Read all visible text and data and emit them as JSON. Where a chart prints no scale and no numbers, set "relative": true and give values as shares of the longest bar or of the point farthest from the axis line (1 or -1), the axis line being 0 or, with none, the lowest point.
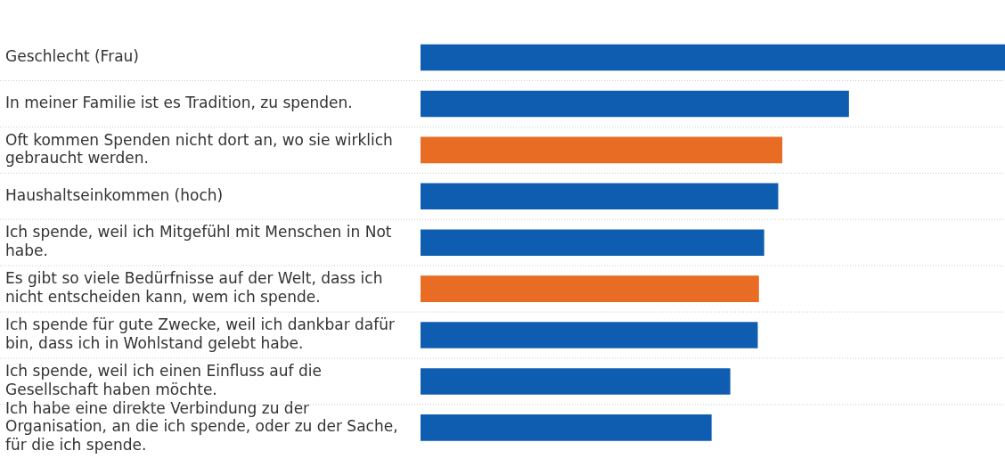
{
  "chart_data": {
    "type": "bar",
    "orientation": "horizontal",
    "relative": true,
    "categories": [
      "Geschlecht (Frau)",
      "In meiner Familie ist es Tradition, zu spenden.",
      "Oft kommen Spenden nicht dort an, wo sie wirklich gebraucht werden.",
      "Haushaltseinkommen (hoch)",
      "Ich spende, weil ich Mitgefühl mit Menschen in Not habe.",
      "Es gibt so viele Bedürfnisse auf der Welt, dass ich nicht entscheiden kann, wem ich spende.",
      "Ich spende für gute Zwecke, weil ich dankbar dafür bin, dass ich in Wohlstand gelebt habe.",
      "Ich spende, weil ich einen Einfluss auf die Gesellschaft haben möchte.",
      "Ich habe eine direkte Verbindung zu der Organisation, an die ich spende, oder zu der Sache, für die ich spende."
    ],
    "values": [
      1,
      0.733,
      0.619,
      0.612,
      0.588,
      0.579,
      0.577,
      0.53,
      0.498
    ],
    "colors": [
      "#0f5db0",
      "#0f5db0",
      "#e86c24",
      "#0f5db0",
      "#0f5db0",
      "#e86c24",
      "#0f5db0",
      "#0f5db0",
      "#0f5db0"
    ]
  }
}
